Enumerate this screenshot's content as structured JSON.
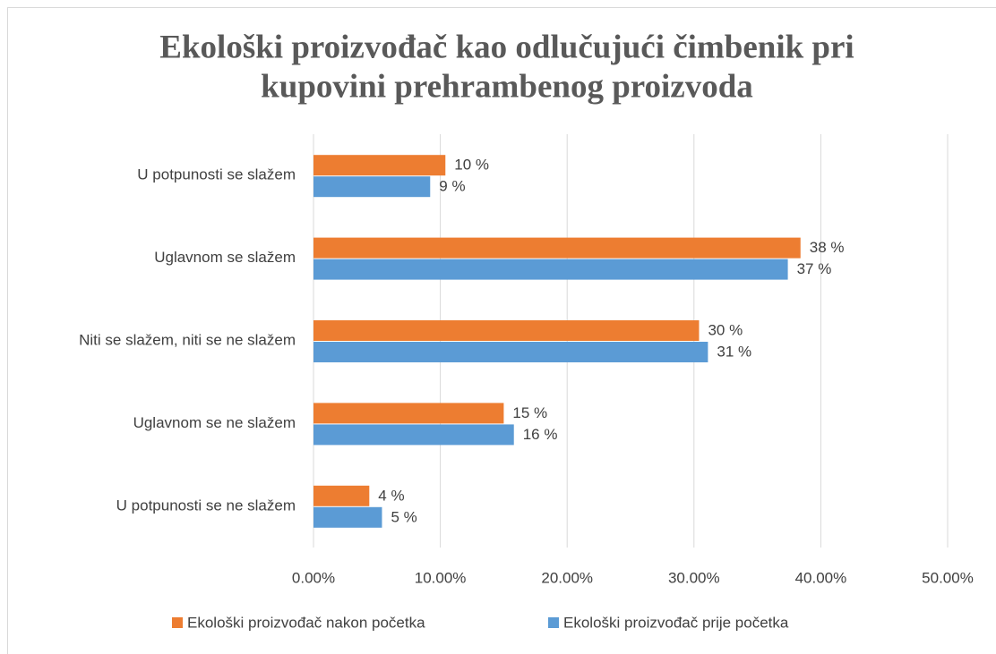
{
  "chart_data": {
    "type": "hbar",
    "title": [
      "Ekološki proizvođač kao odlučujući čimbenik pri",
      "kupovini prehrambenog  proizvoda"
    ],
    "categories": [
      "U potpunosti se slažem",
      "Uglavnom se slažem",
      "Niti se slažem, niti se ne slažem",
      "Uglavnom se ne slažem",
      "U potpunosti se ne slažem"
    ],
    "series": [
      {
        "name": "Ekološki proizvođač nakon početka",
        "color": "#ED7D31",
        "values": [
          10.4,
          38.4,
          30.4,
          15.0,
          4.4
        ],
        "value_labels": [
          "10 %",
          "38 %",
          "30 %",
          "15 %",
          "4 %"
        ]
      },
      {
        "name": "Ekološki proizvođač prije početka",
        "color": "#5B9BD5",
        "values": [
          9.2,
          37.4,
          31.1,
          15.8,
          5.4
        ],
        "value_labels": [
          "9 %",
          "37 %",
          "31 %",
          "16 %",
          "5 %"
        ]
      }
    ],
    "xlim": [
      0,
      50
    ],
    "xticks": [
      {
        "value": 0,
        "label": "0.00%"
      },
      {
        "value": 10,
        "label": "10.00%"
      },
      {
        "value": 20,
        "label": "20.00%"
      },
      {
        "value": 30,
        "label": "30.00%"
      },
      {
        "value": 40,
        "label": "40.00%"
      },
      {
        "value": 50,
        "label": "50.00%"
      }
    ],
    "grid": true,
    "legend": "bottom"
  }
}
